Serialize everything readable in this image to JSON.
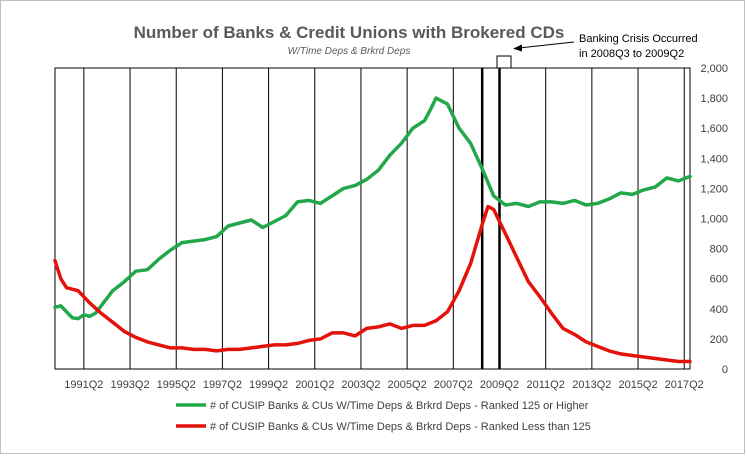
{
  "chart_data": {
    "type": "line",
    "title": "Number of Banks & Credit Unions with Brokered CDs",
    "subtitle": "W/Time Deps & Brkrd Deps",
    "annotation": "Banking Crisis Occurred\nin 2008Q3 to 2009Q2",
    "x_tick_labels": [
      "1991Q2",
      "1993Q2",
      "1995Q2",
      "1997Q2",
      "1999Q2",
      "2001Q2",
      "2003Q2",
      "2005Q2",
      "2007Q2",
      "2009Q2",
      "2011Q2",
      "2013Q2",
      "2015Q2",
      "2017Q2"
    ],
    "y_tick_labels": [
      "0",
      "200",
      "400",
      "600",
      "800",
      "1,000",
      "1,200",
      "1,400",
      "1,600",
      "1,800",
      "2,000"
    ],
    "ylim": [
      0,
      2000
    ],
    "x_range": [
      1990.0,
      2017.5
    ],
    "crisis_x": [
      2008.5,
      2009.25
    ],
    "grid": "vertical",
    "legend_position": "bottom",
    "colors": {
      "series1": "#22a84a",
      "series2": "#e3120b",
      "grid": "#000000"
    },
    "series": [
      {
        "name": "# of CUSIP Banks & CUs W/Time Deps & Brkrd Deps - Ranked 125 or Higher",
        "x": [
          1990.0,
          1990.25,
          1990.5,
          1990.75,
          1991.0,
          1991.25,
          1991.5,
          1991.75,
          1992.0,
          1992.5,
          1993.0,
          1993.5,
          1994.0,
          1994.5,
          1995.0,
          1995.5,
          1996.0,
          1996.5,
          1997.0,
          1997.5,
          1998.0,
          1998.5,
          1999.0,
          1999.5,
          2000.0,
          2000.5,
          2001.0,
          2001.5,
          2002.0,
          2002.5,
          2003.0,
          2003.5,
          2004.0,
          2004.5,
          2005.0,
          2005.5,
          2006.0,
          2006.25,
          2006.5,
          2007.0,
          2007.5,
          2008.0,
          2008.5,
          2009.0,
          2009.5,
          2010.0,
          2010.5,
          2011.0,
          2011.5,
          2012.0,
          2012.5,
          2013.0,
          2013.5,
          2014.0,
          2014.5,
          2015.0,
          2015.5,
          2016.0,
          2016.5,
          2017.0,
          2017.5
        ],
        "values": [
          410,
          420,
          380,
          340,
          335,
          360,
          350,
          370,
          420,
          520,
          580,
          650,
          660,
          730,
          790,
          840,
          850,
          860,
          880,
          950,
          970,
          990,
          940,
          980,
          1020,
          1110,
          1120,
          1100,
          1150,
          1200,
          1220,
          1260,
          1320,
          1420,
          1500,
          1600,
          1650,
          1720,
          1800,
          1760,
          1600,
          1500,
          1330,
          1150,
          1090,
          1100,
          1080,
          1110,
          1110,
          1100,
          1120,
          1090,
          1100,
          1130,
          1170,
          1160,
          1190,
          1210,
          1270,
          1250,
          1280
        ]
      },
      {
        "name": "# of CUSIP Banks & CUs W/Time Deps & Brkrd Deps -  Ranked Less than 125",
        "x": [
          1990.0,
          1990.25,
          1990.5,
          1991.0,
          1991.5,
          1992.0,
          1992.5,
          1993.0,
          1993.5,
          1994.0,
          1994.5,
          1995.0,
          1995.5,
          1996.0,
          1996.5,
          1997.0,
          1997.5,
          1998.0,
          1998.5,
          1999.0,
          1999.5,
          2000.0,
          2000.5,
          2001.0,
          2001.5,
          2002.0,
          2002.5,
          2003.0,
          2003.5,
          2004.0,
          2004.5,
          2005.0,
          2005.5,
          2006.0,
          2006.5,
          2007.0,
          2007.5,
          2008.0,
          2008.5,
          2008.75,
          2009.0,
          2009.5,
          2010.0,
          2010.5,
          2011.0,
          2011.5,
          2012.0,
          2012.5,
          2013.0,
          2013.5,
          2014.0,
          2014.5,
          2015.0,
          2015.5,
          2016.0,
          2016.5,
          2017.0,
          2017.5
        ],
        "values": [
          720,
          600,
          540,
          520,
          440,
          370,
          310,
          250,
          210,
          180,
          160,
          140,
          140,
          130,
          130,
          120,
          130,
          130,
          140,
          150,
          160,
          160,
          170,
          190,
          200,
          240,
          240,
          220,
          270,
          280,
          300,
          270,
          290,
          290,
          320,
          380,
          520,
          700,
          960,
          1080,
          1060,
          900,
          740,
          580,
          480,
          370,
          270,
          230,
          180,
          150,
          120,
          100,
          90,
          80,
          70,
          60,
          50,
          50
        ]
      }
    ]
  }
}
